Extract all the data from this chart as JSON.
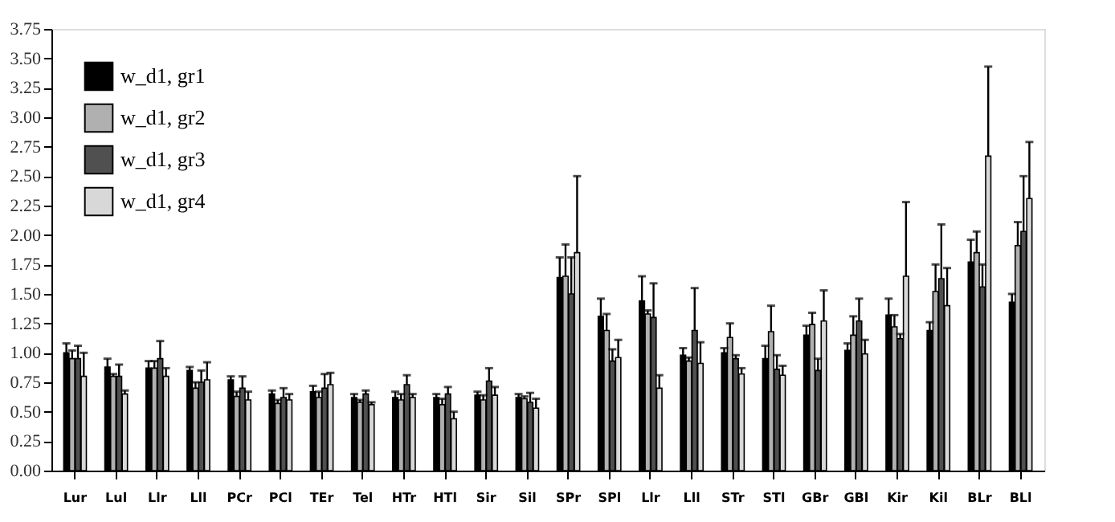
{
  "chart_data": {
    "type": "bar",
    "categories": [
      "Lur",
      "Lul",
      "Llr",
      "Lll",
      "PCr",
      "PCl",
      "TEr",
      "Tel",
      "HTr",
      "HTl",
      "Sir",
      "Sil",
      "SPr",
      "SPl",
      "Llr",
      "Lll",
      "STr",
      "STl",
      "GBr",
      "GBl",
      "Kir",
      "Kil",
      "BLr",
      "BLl"
    ],
    "series": [
      {
        "name": "w_d1, gr1",
        "color": "#000000",
        "values": [
          1.0,
          0.88,
          0.87,
          0.85,
          0.77,
          0.65,
          0.67,
          0.62,
          0.62,
          0.62,
          0.64,
          0.62,
          1.64,
          1.31,
          1.44,
          0.98,
          1.0,
          0.95,
          1.15,
          1.02,
          1.32,
          1.19,
          1.77,
          1.43
        ],
        "errors": [
          [
            1.0,
            1.08
          ],
          [
            0.88,
            0.95
          ],
          [
            0.87,
            0.93
          ],
          [
            0.85,
            0.88
          ],
          [
            0.77,
            0.8
          ],
          [
            0.65,
            0.68
          ],
          [
            0.67,
            0.72
          ],
          [
            0.62,
            0.65
          ],
          [
            0.62,
            0.67
          ],
          [
            0.62,
            0.65
          ],
          [
            0.64,
            0.67
          ],
          [
            0.62,
            0.65
          ],
          [
            1.64,
            1.81
          ],
          [
            1.31,
            1.46
          ],
          [
            1.44,
            1.65
          ],
          [
            0.98,
            1.04
          ],
          [
            1.0,
            1.04
          ],
          [
            0.95,
            1.06
          ],
          [
            1.15,
            1.23
          ],
          [
            1.02,
            1.08
          ],
          [
            1.32,
            1.46
          ],
          [
            1.19,
            1.26
          ],
          [
            1.77,
            1.96
          ],
          [
            1.43,
            1.5
          ]
        ]
      },
      {
        "name": "w_d1, gr2",
        "color": "#b0b0b0",
        "values": [
          0.95,
          0.8,
          0.87,
          0.7,
          0.63,
          0.57,
          0.62,
          0.58,
          0.6,
          0.56,
          0.6,
          0.61,
          1.65,
          1.19,
          1.33,
          0.93,
          1.13,
          1.18,
          1.24,
          1.15,
          1.22,
          1.52,
          1.85,
          1.91
        ],
        "errors": [
          [
            0.95,
            1.02
          ],
          [
            0.8,
            0.82
          ],
          [
            0.87,
            0.93
          ],
          [
            0.7,
            0.75
          ],
          [
            0.63,
            0.67
          ],
          [
            0.57,
            0.6
          ],
          [
            0.62,
            0.67
          ],
          [
            0.58,
            0.6
          ],
          [
            0.6,
            0.65
          ],
          [
            0.56,
            0.61
          ],
          [
            0.6,
            0.64
          ],
          [
            0.61,
            0.63
          ],
          [
            1.65,
            1.92
          ],
          [
            1.19,
            1.33
          ],
          [
            1.33,
            1.36
          ],
          [
            0.93,
            0.96
          ],
          [
            1.13,
            1.25
          ],
          [
            1.18,
            1.4
          ],
          [
            1.24,
            1.34
          ],
          [
            1.15,
            1.31
          ],
          [
            1.22,
            1.32
          ],
          [
            1.52,
            1.75
          ],
          [
            1.85,
            2.03
          ],
          [
            1.91,
            2.11
          ]
        ]
      },
      {
        "name": "w_d1, gr3",
        "color": "#505050",
        "values": [
          0.95,
          0.8,
          0.95,
          0.75,
          0.7,
          0.62,
          0.7,
          0.65,
          0.73,
          0.65,
          0.76,
          0.58,
          1.5,
          0.93,
          1.3,
          1.19,
          0.95,
          0.86,
          0.85,
          1.27,
          1.12,
          1.63,
          1.56,
          2.03
        ],
        "errors": [
          [
            0.95,
            1.06
          ],
          [
            0.8,
            0.9
          ],
          [
            0.95,
            1.1
          ],
          [
            0.75,
            0.85
          ],
          [
            0.7,
            0.8
          ],
          [
            0.62,
            0.7
          ],
          [
            0.7,
            0.82
          ],
          [
            0.65,
            0.68
          ],
          [
            0.73,
            0.81
          ],
          [
            0.65,
            0.71
          ],
          [
            0.76,
            0.87
          ],
          [
            0.58,
            0.66
          ],
          [
            1.5,
            1.81
          ],
          [
            0.93,
            1.03
          ],
          [
            1.3,
            1.59
          ],
          [
            1.19,
            1.55
          ],
          [
            0.95,
            0.98
          ],
          [
            0.86,
            0.98
          ],
          [
            0.85,
            0.95
          ],
          [
            1.27,
            1.46
          ],
          [
            1.12,
            1.16
          ],
          [
            1.63,
            2.09
          ],
          [
            1.56,
            1.75
          ],
          [
            2.03,
            2.5
          ]
        ]
      },
      {
        "name": "w_d1, gr4",
        "color": "#d8d8d8",
        "values": [
          0.8,
          0.65,
          0.8,
          0.77,
          0.6,
          0.6,
          0.73,
          0.56,
          0.62,
          0.44,
          0.64,
          0.53,
          1.85,
          0.96,
          0.7,
          0.91,
          0.82,
          0.81,
          1.27,
          0.99,
          1.65,
          1.4,
          2.67,
          2.31
        ],
        "errors": [
          [
            0.8,
            1.0
          ],
          [
            0.65,
            0.68
          ],
          [
            0.8,
            0.87
          ],
          [
            0.77,
            0.92
          ],
          [
            0.6,
            0.67
          ],
          [
            0.6,
            0.65
          ],
          [
            0.73,
            0.83
          ],
          [
            0.56,
            0.58
          ],
          [
            0.62,
            0.65
          ],
          [
            0.44,
            0.5
          ],
          [
            0.64,
            0.71
          ],
          [
            0.53,
            0.61
          ],
          [
            1.85,
            2.5
          ],
          [
            0.96,
            1.11
          ],
          [
            0.7,
            0.81
          ],
          [
            0.91,
            1.09
          ],
          [
            0.82,
            0.87
          ],
          [
            0.81,
            0.89
          ],
          [
            1.27,
            1.53
          ],
          [
            0.99,
            1.11
          ],
          [
            1.65,
            2.28
          ],
          [
            1.4,
            1.72
          ],
          [
            2.67,
            3.43
          ],
          [
            2.31,
            2.79
          ]
        ]
      }
    ],
    "ylim": [
      0,
      3.75
    ],
    "yticks": [
      {
        "value": 0,
        "label": "0.00"
      },
      {
        "value": 0.25,
        "label": "0.25"
      },
      {
        "value": 0.5,
        "label": "0.50"
      },
      {
        "value": 0.75,
        "label": "0.75"
      },
      {
        "value": 1,
        "label": "1.00"
      },
      {
        "value": 1.25,
        "label": "1.25"
      },
      {
        "value": 1.5,
        "label": "1.50"
      },
      {
        "value": 1.75,
        "label": "1.75"
      },
      {
        "value": 2,
        "label": "2.00"
      },
      {
        "value": 2.25,
        "label": "2.25"
      },
      {
        "value": 2.5,
        "label": "2.50"
      },
      {
        "value": 2.75,
        "label": "2.75"
      },
      {
        "value": 3,
        "label": "3.00"
      },
      {
        "value": 3.25,
        "label": "3.25"
      },
      {
        "value": 3.5,
        "label": "3.50"
      },
      {
        "value": 3.75,
        "label": "3.75"
      }
    ],
    "legend": "top left",
    "grid": false
  }
}
